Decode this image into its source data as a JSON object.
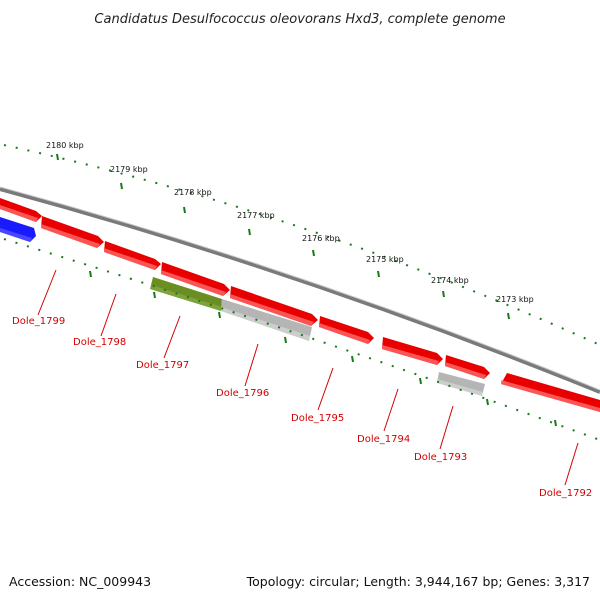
{
  "header": {
    "title": "Candidatus Desulfococcus oleovorans Hxd3, complete genome"
  },
  "footer": {
    "accession": "Accession: NC_009943",
    "summary": "Topology: circular; Length: 3,944,167 bp; Genes: 3,317"
  },
  "colors": {
    "gene_forward": "#e80000",
    "gene_reverse": "#e80000",
    "gene_blue": "#1a1aff",
    "gene_olive": "#6b8e23",
    "gene_gray": "#b5b5b5",
    "backbone": "#7a7a7a",
    "ticks": "#1a7a1a",
    "label": "#d40000"
  },
  "kbp_labels": [
    "2180 kbp",
    "2179 kbp",
    "2178 kbp",
    "2177 kbp",
    "2176 kbp",
    "2175 kbp",
    "2174 kbp",
    "2173 kbp"
  ],
  "gene_labels": [
    "Dole_1799",
    "Dole_1798",
    "Dole_1797",
    "Dole_1796",
    "Dole_1795",
    "Dole_1794",
    "Dole_1793",
    "Dole_1792"
  ]
}
